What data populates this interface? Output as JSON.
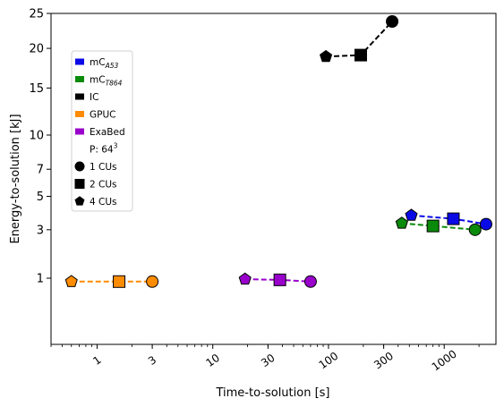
{
  "chart_data": {
    "type": "scatter",
    "title": "",
    "xlabel": "Time-to-solution   [s]",
    "ylabel": "Energy-to-solution   [kJ]",
    "xscale": "log",
    "xlim": [
      0.4,
      2800
    ],
    "ylim": [
      0,
      25
    ],
    "xticks": [
      {
        "value": 1,
        "label": "1"
      },
      {
        "value": 3,
        "label": "3"
      },
      {
        "value": 10,
        "label": "10"
      },
      {
        "value": 30,
        "label": "30"
      },
      {
        "value": 100,
        "label": "100"
      },
      {
        "value": 300,
        "label": "300"
      },
      {
        "value": 1000,
        "label": "1000"
      }
    ],
    "yticks": [
      {
        "value": 1,
        "label": "1"
      },
      {
        "value": 3,
        "label": "3"
      },
      {
        "value": 5,
        "label": "5"
      },
      {
        "value": 7,
        "label": "7"
      },
      {
        "value": 10,
        "label": "10"
      },
      {
        "value": 15,
        "label": "15"
      },
      {
        "value": 20,
        "label": "20"
      },
      {
        "value": 25,
        "label": "25"
      }
    ],
    "grid": false,
    "legend_position": "upper-left",
    "series": [
      {
        "name": "mC",
        "subscript": "A53",
        "color": "#0a0ae6",
        "points": [
          {
            "x": 2300,
            "y": 3.3,
            "marker": "circle"
          },
          {
            "x": 1200,
            "y": 3.6,
            "marker": "square"
          },
          {
            "x": 520,
            "y": 3.8,
            "marker": "pentagon"
          }
        ]
      },
      {
        "name": "mC",
        "subscript": "T864",
        "color": "#0a8a0a",
        "points": [
          {
            "x": 1850,
            "y": 3.0,
            "marker": "circle"
          },
          {
            "x": 800,
            "y": 3.2,
            "marker": "square"
          },
          {
            "x": 430,
            "y": 3.35,
            "marker": "pentagon"
          }
        ]
      },
      {
        "name": "IC",
        "subscript": "",
        "color": "#000000",
        "points": [
          {
            "x": 355,
            "y": 23.8,
            "marker": "circle"
          },
          {
            "x": 190,
            "y": 19.1,
            "marker": "square"
          },
          {
            "x": 95,
            "y": 18.9,
            "marker": "pentagon"
          }
        ]
      },
      {
        "name": "GPUC",
        "subscript": "",
        "color": "#ff8c00",
        "points": [
          {
            "x": 3.0,
            "y": 0.9,
            "marker": "circle"
          },
          {
            "x": 1.55,
            "y": 0.9,
            "marker": "square"
          },
          {
            "x": 0.6,
            "y": 0.9,
            "marker": "pentagon"
          }
        ]
      },
      {
        "name": "ExaBed",
        "subscript": "",
        "color": "#9900cc",
        "points": [
          {
            "x": 70,
            "y": 0.9,
            "marker": "circle"
          },
          {
            "x": 38,
            "y": 0.95,
            "marker": "square"
          },
          {
            "x": 19,
            "y": 0.97,
            "marker": "pentagon"
          }
        ]
      }
    ],
    "legend": {
      "problem_label": "P: 64",
      "problem_exponent": "3",
      "markers": [
        {
          "marker": "circle",
          "label": "1 CUs"
        },
        {
          "marker": "square",
          "label": "2 CUs"
        },
        {
          "marker": "pentagon",
          "label": "4 CUs"
        }
      ]
    }
  }
}
